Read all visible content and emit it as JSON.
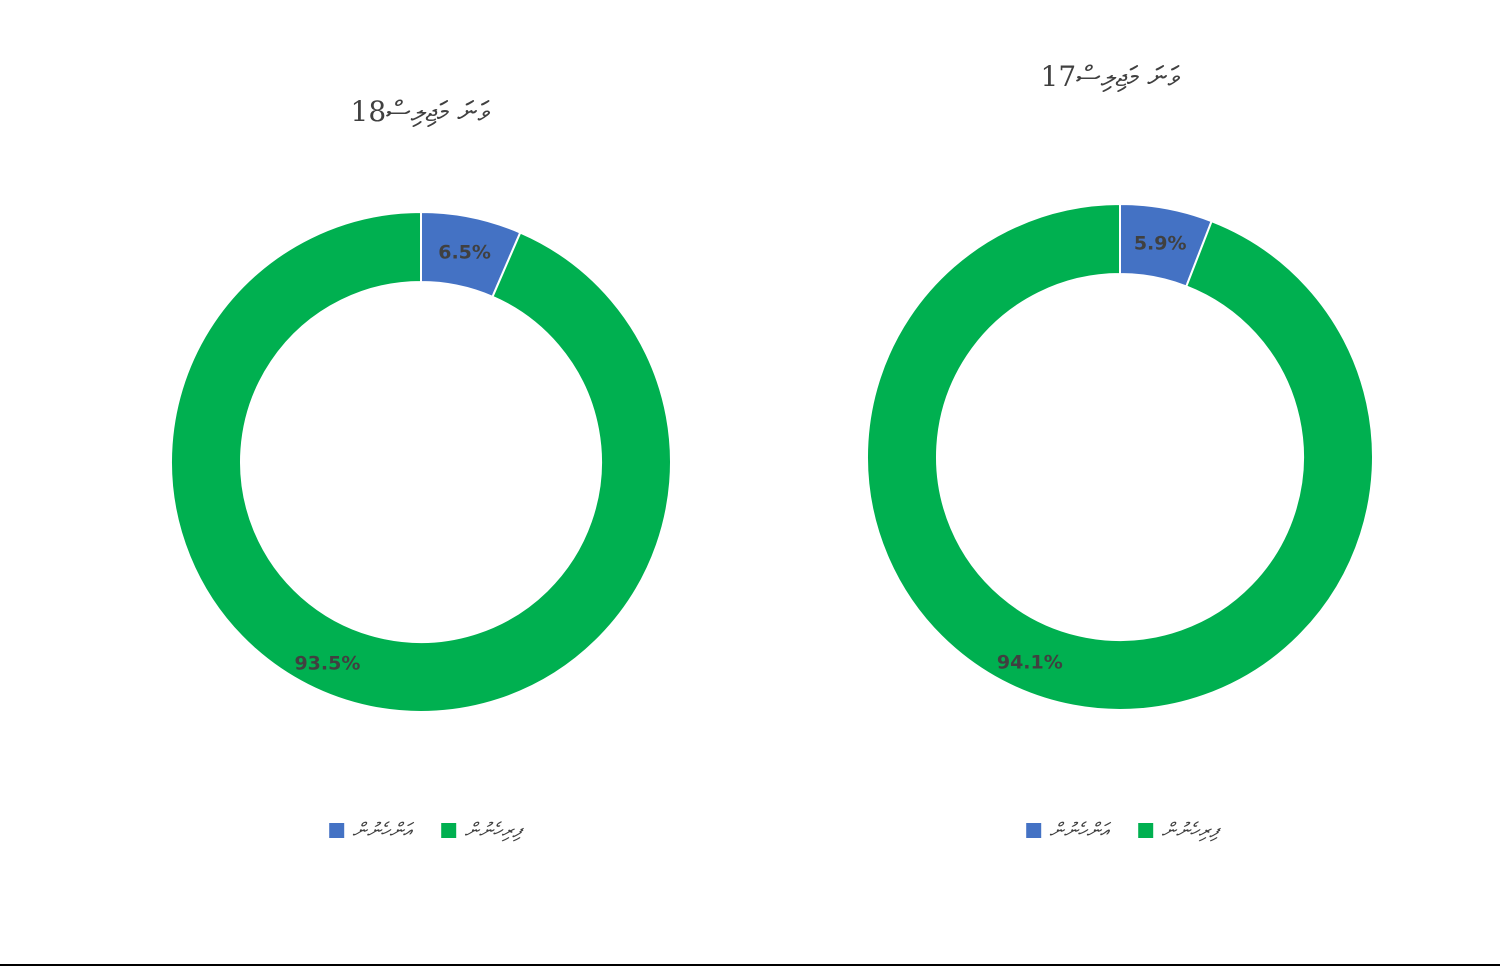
{
  "colors": {
    "blue": "#4472C4",
    "green": "#00B050"
  },
  "chart_data": [
    {
      "type": "pie",
      "title": "18ވަނަ މަޖިލިސް",
      "categories": [
        "އަންހެނުން",
        "ފިރިހެނުން"
      ],
      "values": [
        6.5,
        93.5
      ],
      "data_labels": [
        "6.5%",
        "93.5%"
      ],
      "legend_position": "bottom"
    },
    {
      "type": "pie",
      "title": "17ވަނަ މަޖިލިސް",
      "categories": [
        "އަންހެނުން",
        "ފިރިހެނުން"
      ],
      "values": [
        5.9,
        94.1
      ],
      "data_labels": [
        "5.9%",
        "94.1%"
      ],
      "legend_position": "bottom"
    }
  ]
}
